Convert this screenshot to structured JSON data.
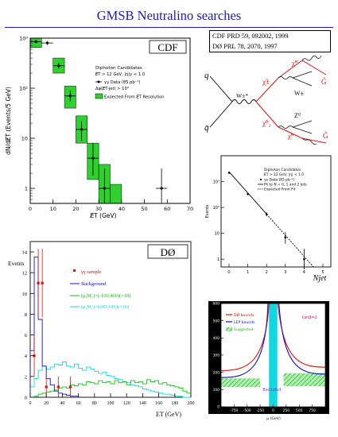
{
  "title": "GMSB Neutralino searches",
  "references": {
    "cdf": "CDF PRD 59, 092002, 1999",
    "d0": "DØ   PRL 78, 2070, 1997"
  },
  "colors": {
    "title": "#1a1ab4",
    "cdf_band": "#2fd12f",
    "d0_sample": "#e01010",
    "d0_background": "#1010c0",
    "d0_model_a": "#10c010",
    "d0_model_b": "#10d8e0",
    "feynman_red": "#e01010"
  },
  "chart_data": [
    {
      "id": "cdf-diphoton",
      "type": "histogram",
      "badge": "CDF",
      "xlabel": "E̸T (GeV)",
      "ylabel": "dN/dE̸T (Events/5 GeV)",
      "xlim": [
        0,
        70
      ],
      "ylim_log": [
        0.5,
        1000
      ],
      "log_y": true,
      "xticks": [
        0,
        10,
        20,
        30,
        40,
        50,
        60,
        70
      ],
      "yticks": [
        {
          "v": 1000,
          "label": "10³"
        },
        {
          "v": 100,
          "label": "10²"
        },
        {
          "v": 10,
          "label": "10"
        },
        {
          "v": 1,
          "label": "1"
        }
      ],
      "legend": {
        "heading": "Diphoton Candidates",
        "cuts": [
          "E̸T > 12 GeV, |η|γ < 1.0",
          "Δφ(E̸T-jet) > 10°"
        ],
        "data_label": "γγ Data (85 pb⁻¹)",
        "band_label": "Expected From E̸T Resolution"
      },
      "expected_bins": [
        {
          "x0": 0,
          "x1": 5,
          "lo": 650,
          "hi": 1000
        },
        {
          "x0": 10,
          "x1": 15,
          "lo": 200,
          "hi": 400
        },
        {
          "x0": 15,
          "x1": 20,
          "lo": 40,
          "hi": 110
        },
        {
          "x0": 20,
          "x1": 25,
          "lo": 8,
          "hi": 28
        },
        {
          "x0": 25,
          "x1": 30,
          "lo": 1.5,
          "hi": 8
        },
        {
          "x0": 30,
          "x1": 35,
          "lo": 0.5,
          "hi": 3
        },
        {
          "x0": 35,
          "x1": 40,
          "lo": 0.5,
          "hi": 1.2
        }
      ],
      "data_points": [
        {
          "x": 2.5,
          "y": 850,
          "xerr": 2.5,
          "ylo": 780,
          "yhi": 930
        },
        {
          "x": 7.5,
          "y": 800,
          "xerr": 2.5,
          "ylo": 730,
          "yhi": 870
        },
        {
          "x": 12.5,
          "y": 280,
          "xerr": 2.5,
          "ylo": 245,
          "yhi": 320
        },
        {
          "x": 17.5,
          "y": 70,
          "xerr": 2.5,
          "ylo": 55,
          "yhi": 90
        },
        {
          "x": 22.5,
          "y": 15,
          "xerr": 2.5,
          "ylo": 9,
          "yhi": 22
        },
        {
          "x": 27.5,
          "y": 4,
          "xerr": 2.5,
          "ylo": 1.8,
          "yhi": 8
        },
        {
          "x": 32.5,
          "y": 1,
          "xerr": 2.5,
          "ylo": 0.5,
          "yhi": 2.5
        },
        {
          "x": 57.5,
          "y": 1,
          "xerr": 2.5,
          "ylo": 0.5,
          "yhi": 2.5
        }
      ]
    },
    {
      "id": "d0-diphoton",
      "type": "histogram",
      "badge": "DØ",
      "xlabel": "ET (GeV)",
      "ylabel": "Events",
      "xlim": [
        0,
        200
      ],
      "ylim": [
        0,
        15
      ],
      "xticks": [
        0,
        20,
        40,
        60,
        80,
        100,
        120,
        140,
        160,
        180,
        200
      ],
      "yticks": [
        0,
        2,
        4,
        6,
        8,
        10,
        12,
        14
      ],
      "legend": [
        {
          "label": "γγ sample",
          "color": "#e01010"
        },
        {
          "label": "Background",
          "color": "#1010c0"
        },
        {
          "label": "(μ,M₂)=(-160,400)(×10)",
          "color": "#10c010"
        },
        {
          "label": "(μ,M₂)=(600,180)(×10)",
          "color": "#10d8e0"
        }
      ],
      "background_hist": {
        "bin_width": 5,
        "values": [
          4.5,
          13.5,
          7.5,
          3,
          1.8,
          1.2,
          0.6,
          0.4,
          0.3,
          0.2,
          0.1,
          0.1
        ]
      },
      "model_a_hist": {
        "bin_width": 5,
        "values": [
          0,
          0.1,
          0.3,
          0.4,
          0.5,
          0.6,
          0.7,
          0.9,
          1,
          0.9,
          1.2,
          1.1,
          1.3,
          1.2,
          1.5,
          1.4,
          1.3,
          1.6,
          1.4,
          1.5,
          1.3,
          1.6,
          1.4,
          1.5,
          1.2,
          1.6,
          1.4,
          1.5,
          1.3,
          1.7,
          1.5,
          1.6,
          1.3,
          1.4,
          1.2,
          1.1,
          1,
          0.9,
          0.6,
          0.4
        ]
      },
      "model_b_hist": {
        "bin_width": 5,
        "values": [
          1,
          1.8,
          2.6,
          3,
          2.7,
          2.9,
          3.2,
          3.1,
          3.4,
          3,
          2.9,
          3.2,
          2.8,
          2.6,
          2.9,
          2.7,
          2.5,
          2.3,
          2.4,
          2.1,
          2,
          1.8,
          1.7,
          1.5,
          1.4,
          1.2,
          1.1,
          1,
          0.8,
          0.7,
          0.6,
          0.5,
          0.4,
          0.3,
          0.3,
          0.2,
          0.1,
          0.1,
          0,
          0
        ]
      },
      "sample_points": [
        {
          "x": 5,
          "y": 4,
          "yerr": 2
        },
        {
          "x": 10,
          "y": 11,
          "yerr": 3.3
        },
        {
          "x": 15,
          "y": 11,
          "yerr": 3.3
        },
        {
          "x": 20,
          "y": 1,
          "yerr": 1
        },
        {
          "x": 35,
          "y": 1,
          "yerr": 1
        },
        {
          "x": 50,
          "y": 1,
          "yerr": 1
        }
      ]
    },
    {
      "id": "d0-njet",
      "type": "line",
      "xlabel": "Njet",
      "ylabel": "Events",
      "xlim": [
        0,
        5
      ],
      "ylim_log": [
        0.5,
        10000
      ],
      "log_y": true,
      "xticks": [
        0,
        1,
        2,
        3,
        4,
        5
      ],
      "yticks": [
        {
          "v": 1000,
          "label": "10³"
        },
        {
          "v": 100,
          "label": "10²"
        },
        {
          "v": 10,
          "label": "10"
        },
        {
          "v": 1,
          "label": "1"
        }
      ],
      "legend": [
        "Diphoton Candidates",
        "E̸T > 12 GeV, |η| < 1.0",
        "γγ Data (85 pb⁻¹)",
        "Fit to N = 0, 1 and 2 Jets",
        "Expected From Fit"
      ],
      "fit_line": [
        {
          "x": 0,
          "y": 2400
        },
        {
          "x": 4.5,
          "y": 0.5
        }
      ],
      "data_points": [
        {
          "x": 0,
          "y": 2200,
          "ylo": 2100,
          "yhi": 2300
        },
        {
          "x": 1,
          "y": 330,
          "ylo": 300,
          "yhi": 360
        },
        {
          "x": 2,
          "y": 55,
          "ylo": 45,
          "yhi": 65
        },
        {
          "x": 3,
          "y": 7,
          "ylo": 4,
          "yhi": 11
        },
        {
          "x": 4,
          "y": 1,
          "ylo": 0.4,
          "yhi": 2.5
        }
      ]
    },
    {
      "id": "exclusion",
      "type": "area",
      "xlabel": "μ (GeV)",
      "ylabel": "M₂ (GeV)",
      "xlim": [
        -1000,
        1000
      ],
      "ylim": [
        0,
        600
      ],
      "xticks": [
        -750,
        -500,
        -250,
        0,
        250,
        500,
        750
      ],
      "yticks": [
        0,
        100,
        200,
        300,
        400,
        500,
        600
      ],
      "tanbeta_label": "tanβ=2",
      "legend": [
        {
          "label": "DØ bounds",
          "color": "#e01010"
        },
        {
          "label": "LEP bounds",
          "color": "#1010c0"
        },
        {
          "label": "Suggested",
          "color": "#10c010"
        }
      ],
      "excluded_label": "Excluded"
    }
  ],
  "feynman": {
    "quark": "q",
    "antiquark": "q̄",
    "wboson": "W±*",
    "chargino": "χ̃±",
    "neutralino2": "χ̃⁰₂",
    "neutralino1_top": "χ̃⁰",
    "neutralino1_bottom": "χ̃⁰",
    "gravitino_top": "G̃",
    "gravitino_bottom": "G̃",
    "w_decay": "W±",
    "z_decay": "Z⁰",
    "photon": "γ"
  }
}
